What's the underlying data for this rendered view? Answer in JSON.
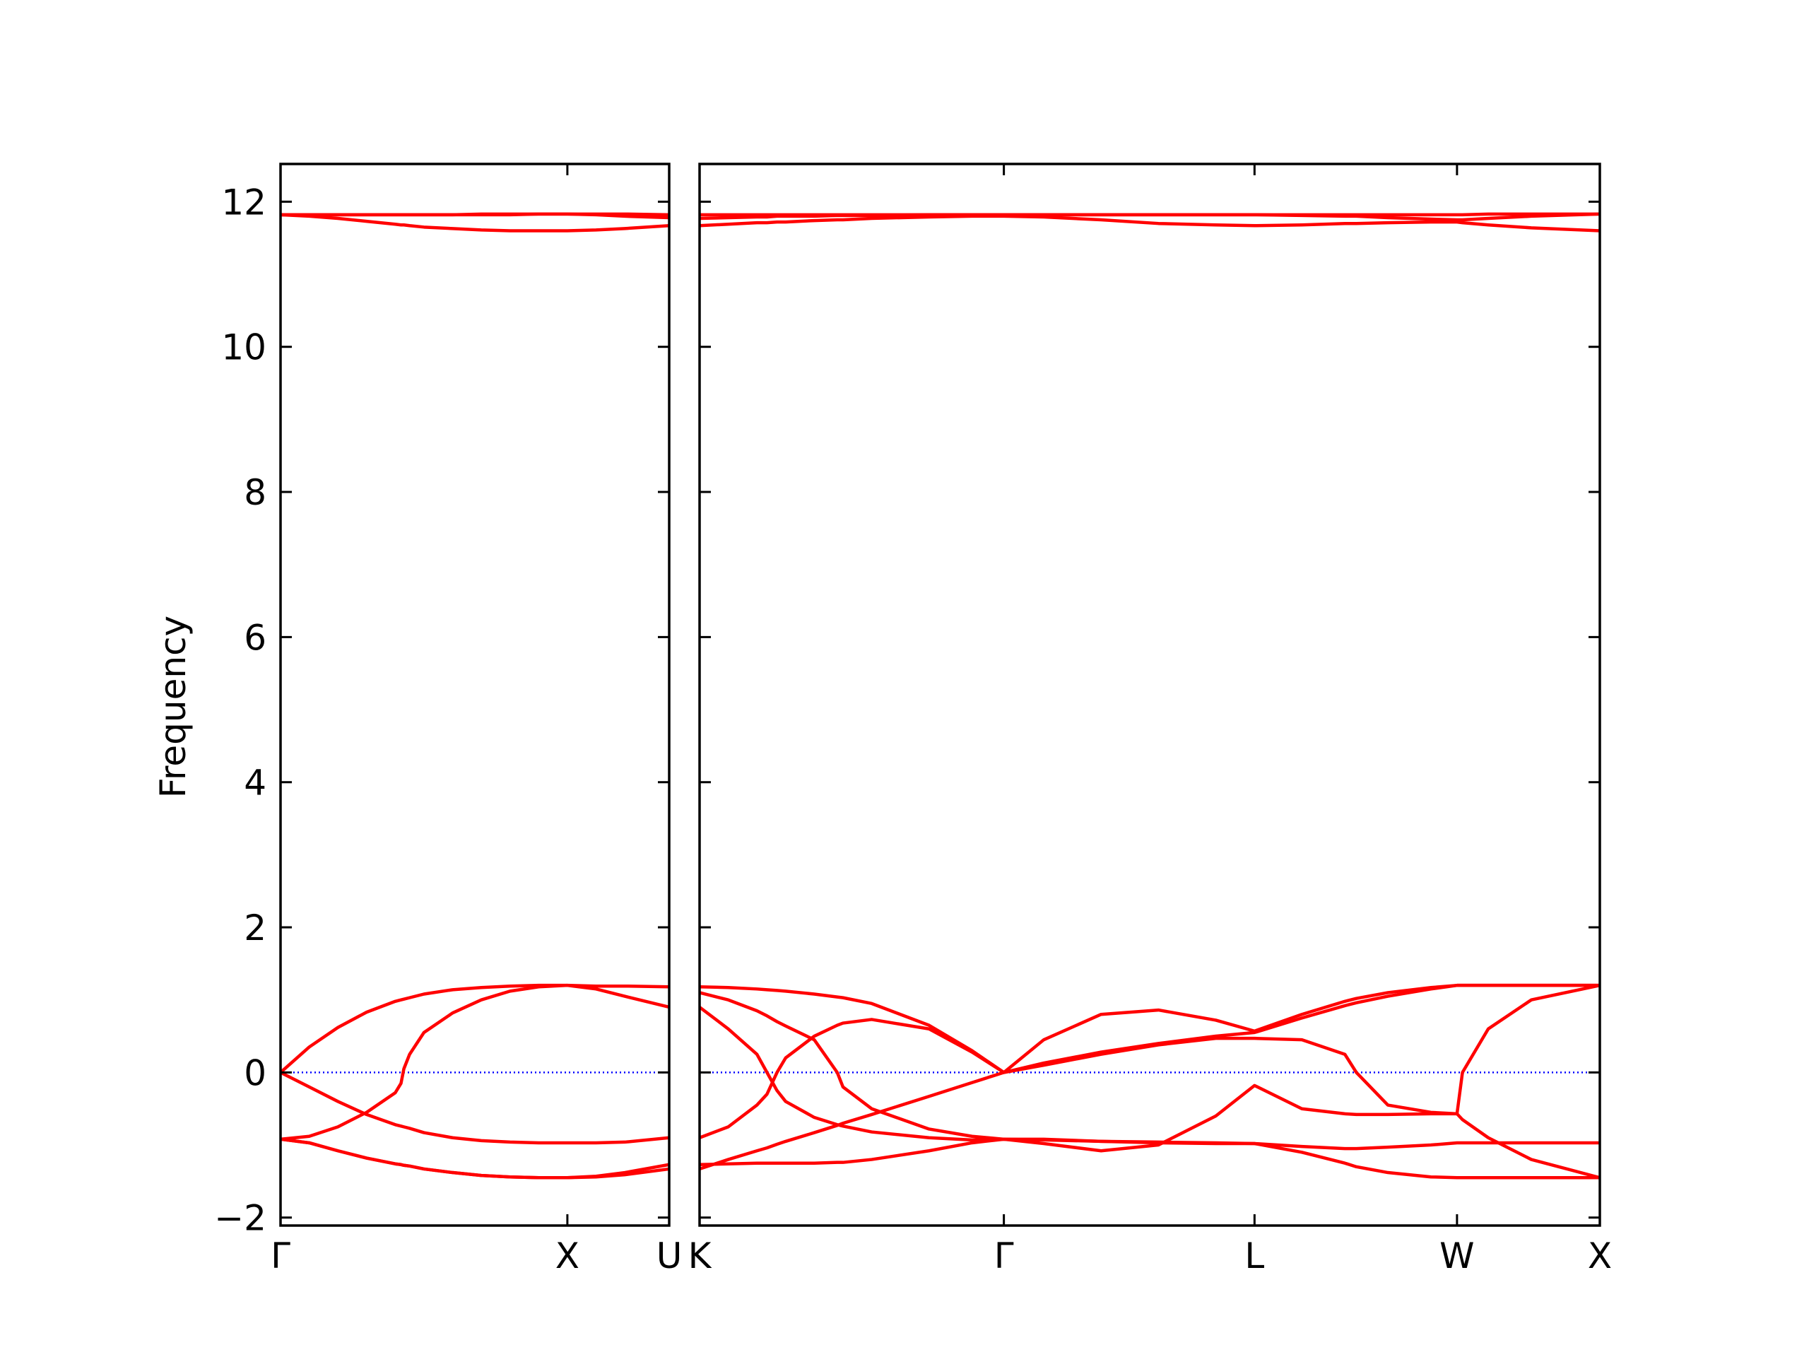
{
  "chart_data": [
    {
      "type": "line",
      "ylabel": "Frequency",
      "x": [
        0,
        0.1,
        0.2,
        0.3,
        0.4,
        0.42,
        0.43,
        0.45,
        0.5,
        0.6,
        0.7,
        0.8,
        0.9,
        1.0,
        1.1,
        1.2,
        1.355
      ],
      "xlim": [
        0,
        1.355
      ],
      "xticks": [
        {
          "value": 0,
          "label": "Γ"
        },
        {
          "value": 1,
          "label": "X"
        },
        {
          "value": 1.355,
          "label": "U"
        }
      ],
      "ylim": [
        -2.11,
        12.52
      ],
      "yticks": [
        {
          "value": -2,
          "label": "−2"
        },
        0,
        2,
        4,
        6,
        8,
        10,
        12
      ],
      "hlines": [
        {
          "value": 0,
          "color": "#0000ff",
          "style": "dotted"
        }
      ],
      "series": [
        {
          "color": "#ff0000",
          "values": [
            0,
            0.35,
            0.62,
            0.83,
            0.98,
            1.0,
            1.01,
            1.03,
            1.08,
            1.14,
            1.17,
            1.19,
            1.2,
            1.2,
            1.19,
            1.19,
            1.18
          ]
        },
        {
          "color": "#ff0000",
          "values": [
            -0.92,
            -0.88,
            -0.75,
            -0.55,
            -0.28,
            -0.15,
            0.05,
            0.25,
            0.55,
            0.82,
            1.0,
            1.12,
            1.18,
            1.2,
            1.15,
            1.05,
            0.9
          ]
        },
        {
          "color": "#ff0000",
          "values": [
            0,
            -0.2,
            -0.4,
            -0.58,
            -0.72,
            -0.74,
            -0.75,
            -0.77,
            -0.83,
            -0.9,
            -0.94,
            -0.96,
            -0.97,
            -0.97,
            -0.97,
            -0.96,
            -0.9
          ]
        },
        {
          "color": "#ff0000",
          "values": [
            -0.92,
            -0.97,
            -1.08,
            -1.18,
            -1.26,
            -1.27,
            -1.28,
            -1.29,
            -1.33,
            -1.38,
            -1.42,
            -1.44,
            -1.45,
            -1.45,
            -1.43,
            -1.38,
            -1.27
          ]
        },
        {
          "color": "#ff0000",
          "values": [
            -0.92,
            -0.97,
            -1.08,
            -1.18,
            -1.26,
            -1.27,
            -1.28,
            -1.29,
            -1.33,
            -1.38,
            -1.42,
            -1.44,
            -1.45,
            -1.45,
            -1.44,
            -1.41,
            -1.33
          ]
        },
        {
          "color": "#ff0000",
          "values": [
            11.82,
            11.82,
            11.82,
            11.82,
            11.82,
            11.82,
            11.82,
            11.82,
            11.82,
            11.82,
            11.83,
            11.83,
            11.83,
            11.83,
            11.83,
            11.83,
            11.82
          ]
        },
        {
          "color": "#ff0000",
          "values": [
            11.82,
            11.8,
            11.77,
            11.73,
            11.69,
            11.68,
            11.68,
            11.67,
            11.65,
            11.63,
            11.61,
            11.6,
            11.6,
            11.6,
            11.61,
            11.63,
            11.67
          ]
        },
        {
          "color": "#ff0000",
          "values": [
            11.82,
            11.82,
            11.82,
            11.82,
            11.82,
            11.82,
            11.82,
            11.82,
            11.82,
            11.82,
            11.82,
            11.82,
            11.83,
            11.83,
            11.82,
            11.8,
            11.78
          ]
        }
      ]
    },
    {
      "type": "line",
      "x": [
        0,
        0.1,
        0.2,
        0.235,
        0.27,
        0.3,
        0.4,
        0.48,
        0.5,
        0.6,
        0.8,
        0.95,
        1.061,
        1.2,
        1.4,
        1.6,
        1.8,
        1.935,
        2.1,
        2.25,
        2.29,
        2.4,
        2.55,
        2.641,
        2.66,
        2.75,
        2.9,
        3.139
      ],
      "xlim": [
        0,
        3.139
      ],
      "xticks": [
        {
          "value": 0,
          "label": "K"
        },
        {
          "value": 1.061,
          "label": "Γ"
        },
        {
          "value": 1.935,
          "label": "L"
        },
        {
          "value": 2.641,
          "label": "W"
        },
        {
          "value": 3.139,
          "label": "X"
        }
      ],
      "hlines": [
        {
          "value": 0,
          "color": "#0000ff",
          "style": "dotted"
        }
      ],
      "series": [
        {
          "color": "#ff0000",
          "values": [
            1.18,
            1.17,
            1.15,
            1.14,
            1.13,
            1.12,
            1.08,
            1.04,
            1.03,
            0.95,
            0.65,
            0.3,
            0,
            0.45,
            0.8,
            0.86,
            0.72,
            0.57,
            0.8,
            0.98,
            1.02,
            1.1,
            1.17,
            1.2,
            1.2,
            1.2,
            1.2,
            1.2
          ]
        },
        {
          "color": "#ff0000",
          "values": [
            0.9,
            0.6,
            0.25,
            0,
            -0.25,
            -0.4,
            -0.62,
            -0.72,
            -0.74,
            -0.82,
            -0.9,
            -0.93,
            -0.92,
            -0.93,
            -0.95,
            -0.96,
            -0.97,
            -0.98,
            -1.02,
            -1.05,
            -1.05,
            -1.03,
            -1.0,
            -0.97,
            -0.97,
            -0.97,
            -0.97,
            -0.97
          ]
        },
        {
          "color": "#ff0000",
          "values": [
            -0.9,
            -0.75,
            -0.45,
            -0.3,
            0,
            0.2,
            0.5,
            0.65,
            0.68,
            0.73,
            0.6,
            0.28,
            0,
            0.1,
            0.25,
            0.38,
            0.47,
            0.47,
            0.45,
            0.25,
            0,
            -0.45,
            -0.55,
            -0.57,
            0,
            0.6,
            1.0,
            1.2
          ]
        },
        {
          "color": "#ff0000",
          "values": [
            1.1,
            1.0,
            0.85,
            0.78,
            0.7,
            0.64,
            0.45,
            0,
            -0.2,
            -0.5,
            -0.78,
            -0.88,
            -0.92,
            -0.98,
            -1.08,
            -1.0,
            -0.6,
            -0.18,
            -0.5,
            -0.57,
            -0.58,
            -0.58,
            -0.57,
            -0.57,
            -0.65,
            -0.9,
            -1.2,
            -1.45
          ]
        },
        {
          "color": "#ff0000",
          "values": [
            -1.33,
            -1.2,
            -1.08,
            -1.04,
            -0.99,
            -0.95,
            -0.83,
            -0.73,
            -0.7,
            -0.58,
            -0.33,
            -0.14,
            0,
            0.13,
            0.28,
            0.4,
            0.5,
            0.55,
            0.75,
            0.92,
            0.96,
            1.05,
            1.15,
            1.2,
            1.2,
            1.2,
            1.2,
            1.2
          ]
        },
        {
          "color": "#ff0000",
          "values": [
            -1.27,
            -1.26,
            -1.25,
            -1.25,
            -1.25,
            -1.25,
            -1.25,
            -1.24,
            -1.24,
            -1.2,
            -1.08,
            -0.97,
            -0.92,
            -0.92,
            -0.95,
            -0.97,
            -0.98,
            -0.98,
            -1.1,
            -1.25,
            -1.3,
            -1.38,
            -1.44,
            -1.45,
            -1.45,
            -1.45,
            -1.45,
            -1.45
          ]
        },
        {
          "color": "#ff0000",
          "values": [
            11.82,
            11.82,
            11.82,
            11.82,
            11.82,
            11.82,
            11.82,
            11.82,
            11.82,
            11.82,
            11.82,
            11.82,
            11.82,
            11.82,
            11.82,
            11.82,
            11.82,
            11.82,
            11.82,
            11.82,
            11.82,
            11.82,
            11.82,
            11.82,
            11.82,
            11.83,
            11.83,
            11.83
          ]
        },
        {
          "color": "#ff0000",
          "values": [
            11.67,
            11.69,
            11.71,
            11.71,
            11.72,
            11.72,
            11.74,
            11.75,
            11.75,
            11.77,
            11.79,
            11.8,
            11.8,
            11.79,
            11.75,
            11.7,
            11.68,
            11.67,
            11.68,
            11.7,
            11.7,
            11.71,
            11.72,
            11.72,
            11.71,
            11.68,
            11.64,
            11.6
          ]
        },
        {
          "color": "#ff0000",
          "values": [
            11.77,
            11.78,
            11.79,
            11.79,
            11.8,
            11.8,
            11.8,
            11.81,
            11.81,
            11.81,
            11.82,
            11.82,
            11.82,
            11.82,
            11.82,
            11.82,
            11.82,
            11.82,
            11.81,
            11.8,
            11.8,
            11.78,
            11.76,
            11.75,
            11.75,
            11.77,
            11.8,
            11.83
          ]
        }
      ]
    }
  ]
}
